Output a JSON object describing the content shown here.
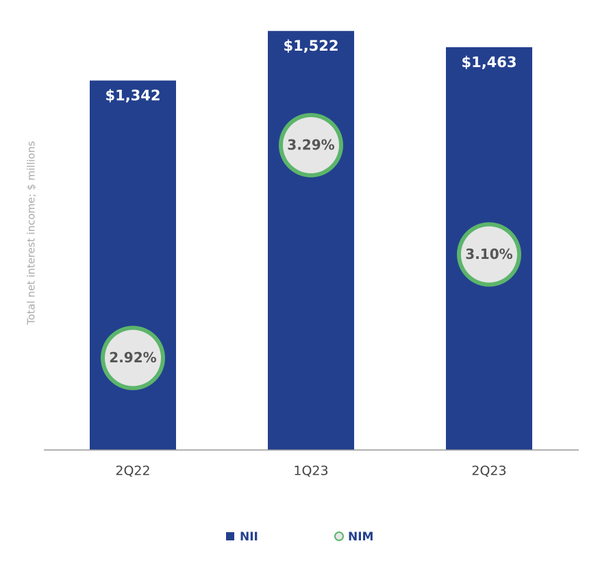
{
  "chart_data": {
    "type": "bar",
    "y_label": "Total net interest income; $ millions",
    "categories": [
      "2Q22",
      "1Q23",
      "2Q23"
    ],
    "series": [
      {
        "name": "NII",
        "color": "#23408e",
        "values": [
          1342,
          1522,
          1463
        ],
        "value_labels": [
          "$1,342",
          "$1,522",
          "$1,463"
        ]
      },
      {
        "name": "NIM",
        "color": "#5cb56b",
        "type": "circle",
        "axis": "y2",
        "values": [
          2.92,
          3.29,
          3.1
        ],
        "value_labels": [
          "2.92%",
          "3.29%",
          "3.10%"
        ]
      }
    ],
    "ylim": [
      0,
      1525
    ],
    "y2lim": [
      2.76,
      3.49
    ]
  }
}
